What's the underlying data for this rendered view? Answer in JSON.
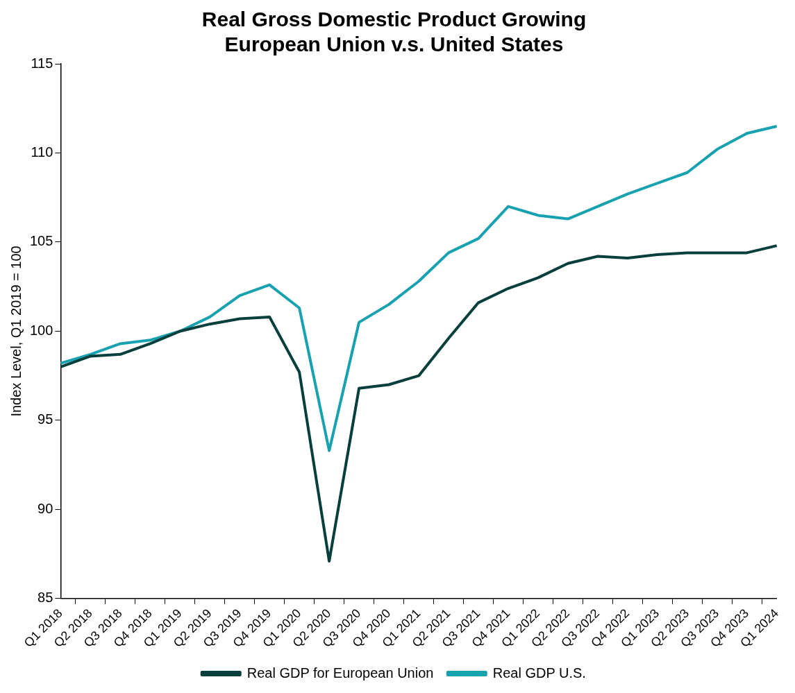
{
  "chart_data": {
    "type": "line",
    "title": [
      "Real Gross Domestic Product Growing",
      "European Union v.s. United States"
    ],
    "ylabel": "Index Level, Q1 2019 = 100",
    "categories": [
      "Q1 2018",
      "Q2 2018",
      "Q3 2018",
      "Q4 2018",
      "Q1 2019",
      "Q2 2019",
      "Q3 2019",
      "Q4 2019",
      "Q1 2020",
      "Q2 2020",
      "Q3 2020",
      "Q4 2020",
      "Q1 2021",
      "Q2 2021",
      "Q3 2021",
      "Q4 2021",
      "Q1 2022",
      "Q2 2022",
      "Q3 2022",
      "Q4 2022",
      "Q1 2023",
      "Q2 2023",
      "Q3 2023",
      "Q4 2023",
      "Q1 2024"
    ],
    "series": [
      {
        "name": "Real GDP for European Union",
        "color": "#073f3c",
        "values": [
          98.0,
          98.6,
          98.7,
          99.3,
          100.0,
          100.4,
          100.7,
          100.8,
          97.7,
          87.1,
          96.8,
          97.0,
          97.5,
          99.6,
          101.6,
          102.4,
          103.0,
          103.8,
          104.2,
          104.1,
          104.3,
          104.4,
          104.4,
          104.4,
          104.8
        ]
      },
      {
        "name": "Real GDP U.S.",
        "color": "#18a2b0",
        "values": [
          98.2,
          98.7,
          99.3,
          99.5,
          100.0,
          100.8,
          102.0,
          102.6,
          101.3,
          93.3,
          100.5,
          101.5,
          102.8,
          104.4,
          105.2,
          107.0,
          106.5,
          106.3,
          107.0,
          107.7,
          108.3,
          108.9,
          110.2,
          111.1,
          111.5
        ]
      }
    ],
    "ylim": [
      85,
      115
    ],
    "yticks": [
      85,
      90,
      95,
      100,
      105,
      110,
      115
    ],
    "grid": false,
    "legend": "bottom",
    "marker": "none",
    "line_style": "solid"
  }
}
